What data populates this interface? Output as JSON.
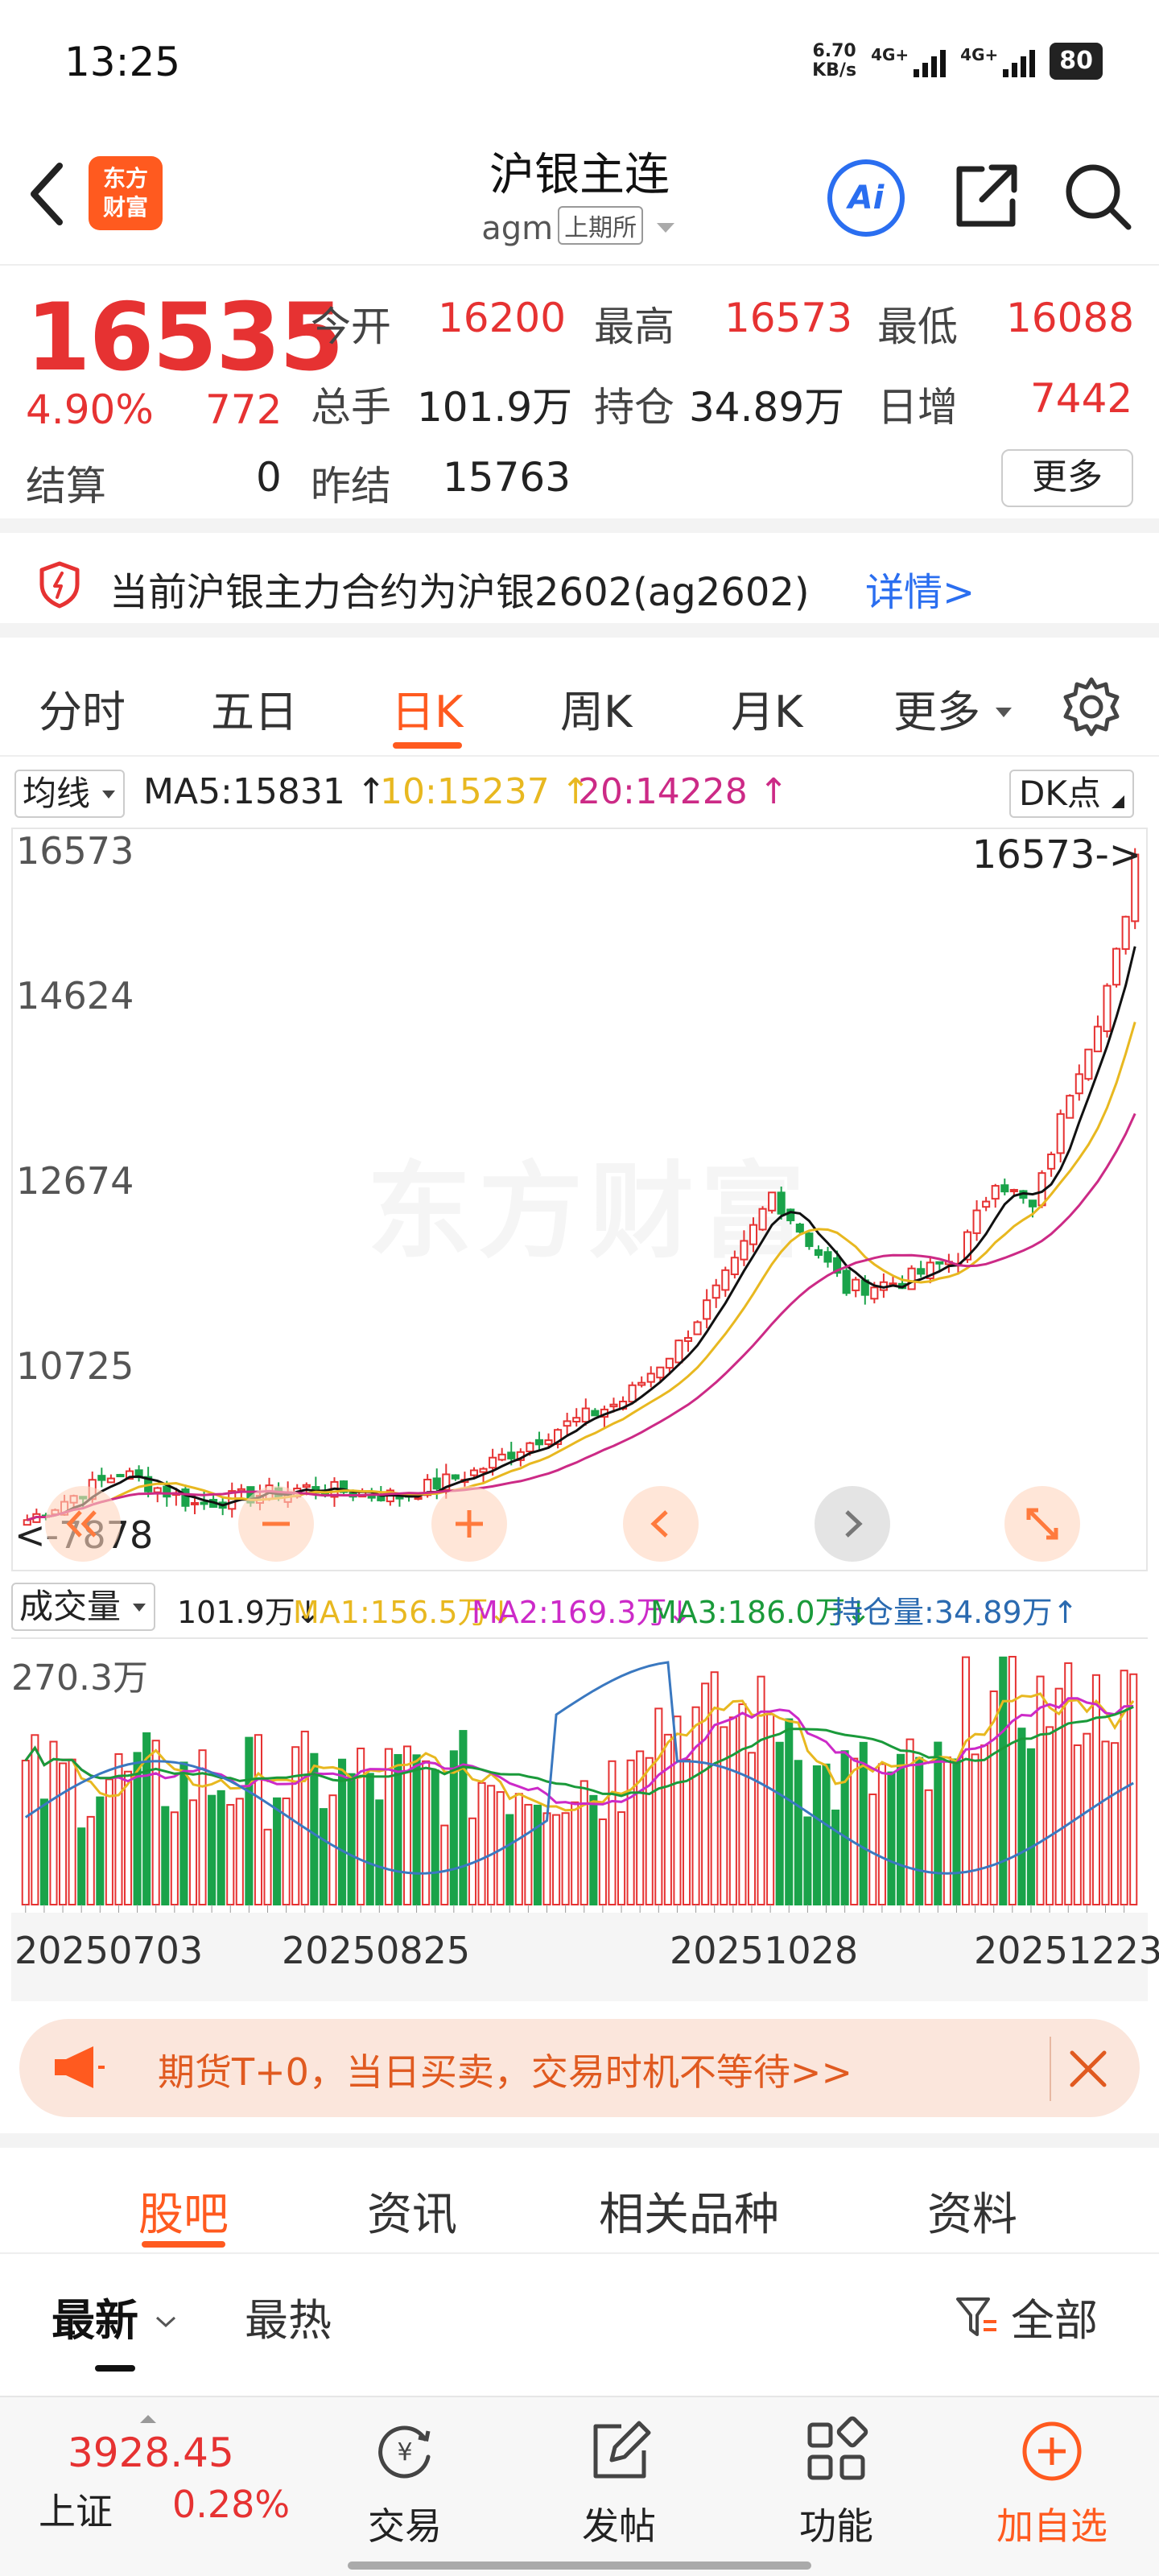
{
  "status_bar": {
    "time": "13:25",
    "net_speed_value": "6.70",
    "net_speed_unit": "KB/s",
    "signal1_label": "4G+",
    "signal2_label": "4G+",
    "battery": "80"
  },
  "header": {
    "logo_line1": "东方",
    "logo_line2": "财富",
    "title": "沪银主连",
    "code": "agm",
    "exchange": "上期所",
    "ai_label": "Ai"
  },
  "quote": {
    "last": "16535",
    "pct_change": "4.90%",
    "abs_change": "772",
    "open_label": "今开",
    "open": "16200",
    "high_label": "最高",
    "high": "16573",
    "low_label": "最低",
    "low": "16088",
    "volume_label": "总手",
    "volume": "101.9万",
    "oi_label": "持仓",
    "oi": "34.89万",
    "day_inc_label": "日增",
    "day_inc": "7442",
    "settle_label": "结算",
    "settle": "0",
    "prev_settle_label": "昨结",
    "prev_settle": "15763",
    "more_label": "更多"
  },
  "notice": {
    "text": "当前沪银主力合约为沪银2602(ag2602)",
    "link": "详情>"
  },
  "period_tabs": [
    "分时",
    "五日",
    "日K",
    "周K",
    "月K",
    "更多"
  ],
  "active_period": "日K",
  "ma_bar": {
    "select_label": "均线",
    "ma5": "MA5:15831",
    "ma10": "10:15237",
    "ma20": "20:14228",
    "dk_label": "DK点"
  },
  "kline": {
    "y_labels": [
      "16573",
      "14624",
      "12674",
      "10725"
    ],
    "high_marker": "16573->",
    "low_marker": "<-7878",
    "watermark": "东方财富"
  },
  "volume_bar": {
    "select_label": "成交量",
    "vol": "101.9万",
    "ma1": "MA1:156.5万",
    "ma2": "MA2:169.3万",
    "ma3": "MA3:186.0万",
    "oi": "持仓量:34.89万"
  },
  "volume_chart": {
    "max_label": "270.3万"
  },
  "date_axis": [
    "20250703",
    "20250825",
    "20251028",
    "20251223"
  ],
  "promo": {
    "text": "期货T+0，当日买卖，交易时机不等待>>"
  },
  "community_tabs": [
    "股吧",
    "资讯",
    "相关品种",
    "资料"
  ],
  "filter_bar": {
    "latest": "最新",
    "hot": "最热",
    "all": "全部"
  },
  "bottom_bar": {
    "index_value": "3928.45",
    "index_name": "上证",
    "index_change": "0.28%",
    "nav": [
      "交易",
      "发帖",
      "功能",
      "加自选"
    ]
  },
  "colors": {
    "up": "#e63232",
    "down": "#1aa34a",
    "accent": "#ff5a1f",
    "ma5": "#111111",
    "ma10": "#e8b820",
    "ma20": "#cc2a86",
    "link": "#2a6ef0"
  }
}
